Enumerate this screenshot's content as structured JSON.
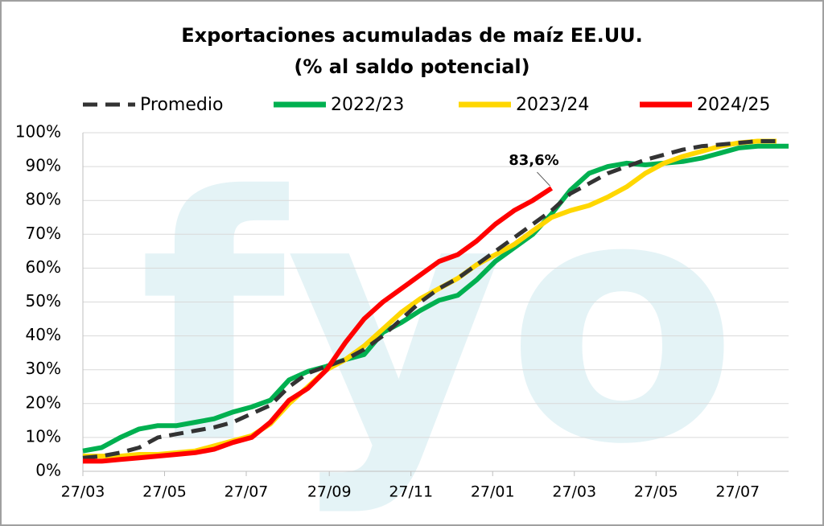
{
  "chart_data": {
    "type": "line",
    "title": "Exportaciones acumuladas de maíz EE.UU.",
    "subtitle": "(% al saldo potencial)",
    "watermark": "fyo",
    "x": [
      0,
      14,
      28,
      42,
      56,
      70,
      84,
      98,
      112,
      126,
      140,
      154,
      168,
      182,
      196,
      210,
      224,
      238,
      252,
      266,
      280,
      294,
      308,
      322,
      336,
      350,
      364,
      378,
      392,
      406,
      420,
      434,
      448,
      462,
      476,
      490,
      504,
      518,
      527
    ],
    "xlim": [
      0,
      527
    ],
    "xticks": [
      {
        "value": 0,
        "label": "27/03"
      },
      {
        "value": 61,
        "label": "27/05"
      },
      {
        "value": 122,
        "label": "27/07"
      },
      {
        "value": 184,
        "label": "27/09"
      },
      {
        "value": 245,
        "label": "27/11"
      },
      {
        "value": 306,
        "label": "27/01"
      },
      {
        "value": 367,
        "label": "27/03"
      },
      {
        "value": 428,
        "label": "27/05"
      },
      {
        "value": 489,
        "label": "27/07"
      }
    ],
    "ylim": [
      0,
      100
    ],
    "yticks": [
      {
        "value": 0,
        "label": "0%"
      },
      {
        "value": 10,
        "label": "10%"
      },
      {
        "value": 20,
        "label": "20%"
      },
      {
        "value": 30,
        "label": "30%"
      },
      {
        "value": 40,
        "label": "40%"
      },
      {
        "value": 50,
        "label": "50%"
      },
      {
        "value": 60,
        "label": "60%"
      },
      {
        "value": 70,
        "label": "70%"
      },
      {
        "value": 80,
        "label": "80%"
      },
      {
        "value": 90,
        "label": "90%"
      },
      {
        "value": 100,
        "label": "100%"
      }
    ],
    "grid": true,
    "legend": "top",
    "series": [
      {
        "name": "Promedio",
        "color": "#333333",
        "dashed": true,
        "values": [
          4,
          4.5,
          5.5,
          7,
          10,
          11,
          12,
          13,
          14.5,
          17,
          19.5,
          25,
          29,
          31,
          33,
          36,
          40,
          45,
          50,
          54,
          57,
          61,
          65,
          69,
          73,
          77,
          82,
          85,
          88,
          90,
          92,
          93.5,
          95,
          96,
          96.5,
          97,
          97.5,
          97.5,
          null
        ]
      },
      {
        "name": "2022/23",
        "color": "#00b050",
        "values": [
          6,
          7,
          10,
          12.5,
          13.5,
          13.5,
          14.5,
          15.5,
          17.5,
          19,
          21,
          27,
          29.5,
          31,
          33,
          34.5,
          41,
          44,
          47.5,
          50.5,
          52,
          56.5,
          62,
          66,
          70,
          76,
          83,
          88,
          90,
          91,
          90.5,
          91,
          91.5,
          92.5,
          94,
          95.5,
          96,
          96,
          96
        ]
      },
      {
        "name": "2023/24",
        "color": "#ffd700",
        "values": [
          4.5,
          4.5,
          4.5,
          5,
          5,
          5.5,
          6,
          7.5,
          9,
          10.5,
          14,
          20,
          25,
          30,
          33,
          37,
          42,
          47,
          51,
          54,
          57,
          61,
          64,
          67,
          71,
          75,
          77,
          78.5,
          81,
          84,
          88,
          91,
          93,
          94.5,
          96,
          97,
          97.5,
          97.5,
          null
        ]
      },
      {
        "name": "2024/25",
        "color": "#ff0000",
        "values": [
          3,
          3,
          3.5,
          4,
          4.5,
          5,
          5.5,
          6.5,
          8.5,
          10,
          14.5,
          21,
          24.5,
          30,
          38,
          45,
          50,
          54,
          58,
          62,
          64,
          68,
          73,
          77,
          80,
          83.6,
          null,
          null,
          null,
          null,
          null,
          null,
          null,
          null,
          null,
          null,
          null,
          null,
          null
        ],
        "value_labels": [
          null,
          null,
          null,
          null,
          null,
          null,
          null,
          null,
          null,
          null,
          null,
          null,
          null,
          null,
          null,
          null,
          null,
          null,
          null,
          null,
          null,
          null,
          null,
          null,
          null,
          "83,6%",
          null,
          null,
          null,
          null,
          null,
          null,
          null,
          null,
          null,
          null,
          null,
          null,
          null
        ]
      }
    ]
  }
}
